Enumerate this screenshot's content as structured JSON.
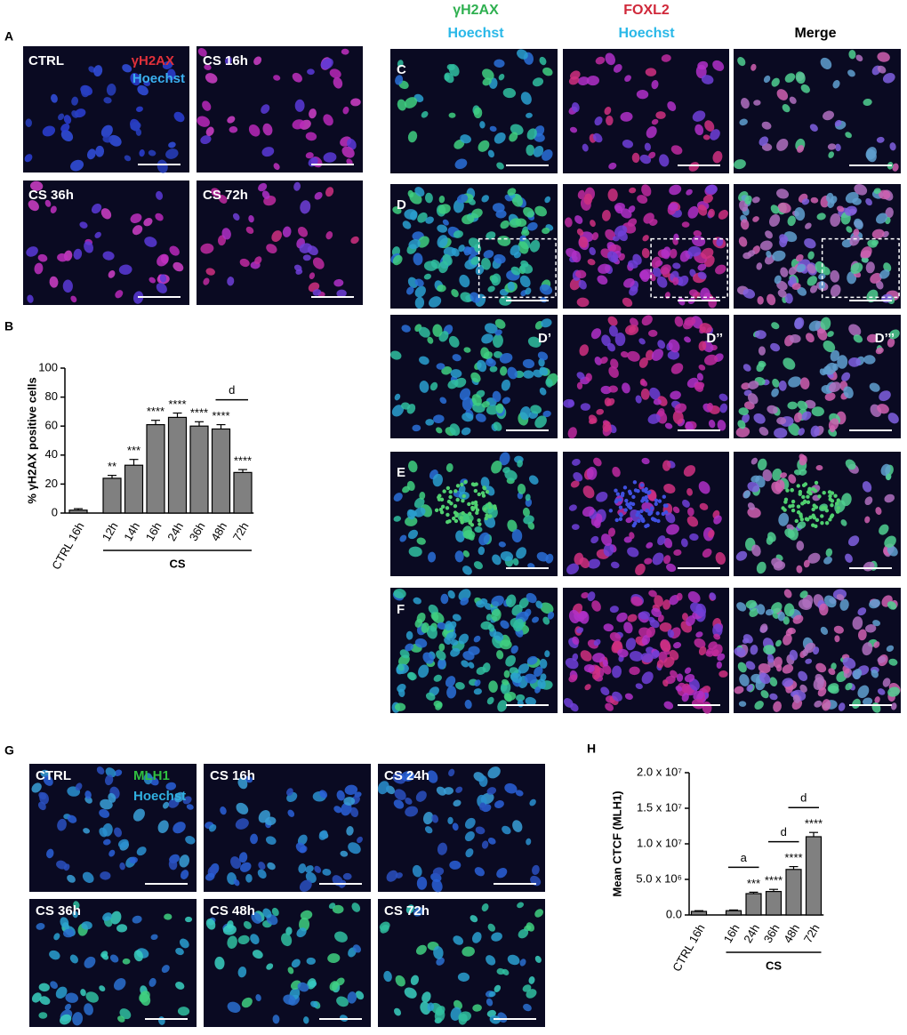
{
  "figure": {
    "panel_a": {
      "letter": "A",
      "labels": [
        "CTRL",
        "CS 16h",
        "CS 36h",
        "CS 72h"
      ],
      "stain_1": "γH2AX",
      "stain_2": "Hoechst"
    },
    "column_headers": [
      {
        "stain_1": "γH2AX",
        "stain_2": "Hoechst"
      },
      {
        "stain_1": "FOXL2",
        "stain_2": "Hoechst"
      },
      {
        "stain_1": "Merge"
      }
    ],
    "row_letters": [
      "C",
      "D",
      "E",
      "F"
    ],
    "inset_labels": [
      "D’",
      "D’’",
      "D’’’"
    ],
    "panel_g": {
      "letter": "G",
      "labels": [
        "CTRL",
        "CS 16h",
        "CS 24h",
        "CS 36h",
        "CS 48h",
        "CS 72h"
      ],
      "stain_1": "MLH1",
      "stain_2": "Hoechst"
    }
  },
  "chart_data": [
    {
      "type": "bar",
      "panel_label": "B",
      "y_label": "% γH2AX positive cells",
      "color": "#808080",
      "categories": [
        "CTRL 16h",
        "12h",
        "14h",
        "16h",
        "24h",
        "36h",
        "48h",
        "72h"
      ],
      "values": [
        2,
        24,
        33,
        61,
        66,
        60,
        58,
        28
      ],
      "errors": [
        1,
        2,
        4,
        3,
        3,
        3,
        3,
        2
      ],
      "annotations": [
        null,
        "**",
        "***",
        "****",
        "****",
        "****",
        "****",
        "****"
      ],
      "group": {
        "label": "CS",
        "span": [
          "12h",
          "72h"
        ]
      },
      "brackets": [
        {
          "label": "d",
          "span": [
            "48h",
            "72h"
          ]
        }
      ],
      "ylim": [
        0,
        100
      ],
      "yticks": [
        0,
        20,
        40,
        60,
        80,
        100
      ]
    },
    {
      "type": "bar",
      "panel_label": "H",
      "y_label": "Mean CTCF (MLH1)",
      "color": "#808080",
      "categories": [
        "CTRL 16h",
        "16h",
        "24h",
        "36h",
        "48h",
        "72h"
      ],
      "values": [
        500000,
        600000,
        3000000,
        3300000,
        6400000,
        11000000
      ],
      "errors": [
        100000,
        100000,
        200000,
        300000,
        400000,
        600000
      ],
      "annotations": [
        null,
        null,
        "***",
        "****",
        "****",
        "****"
      ],
      "group": {
        "label": "CS",
        "span": [
          "16h",
          "72h"
        ]
      },
      "brackets": [
        {
          "label": "a",
          "span": [
            "16h",
            "24h"
          ]
        },
        {
          "label": "d",
          "span": [
            "36h",
            "48h"
          ]
        },
        {
          "label": "d",
          "span": [
            "48h",
            "72h"
          ]
        }
      ],
      "ylim": [
        0,
        20000000
      ],
      "yticks": [
        {
          "value": 0,
          "label": "0.0"
        },
        {
          "value": 5000000,
          "label": "5.0 x 10⁶"
        },
        {
          "value": 10000000,
          "label": "1.0 x 10⁷"
        },
        {
          "value": 15000000,
          "label": "1.5 x 10⁷"
        },
        {
          "value": 20000000,
          "label": "2.0 x 10⁷"
        }
      ]
    }
  ]
}
